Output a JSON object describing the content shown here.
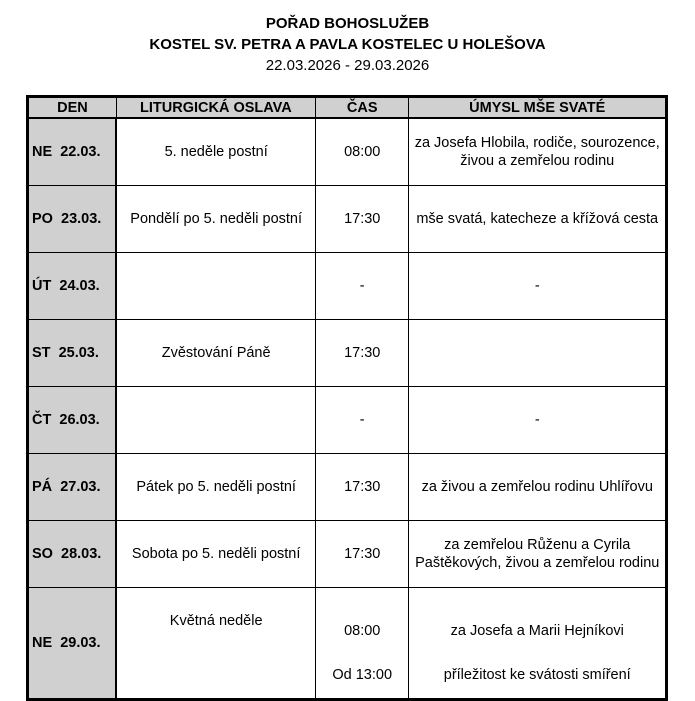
{
  "header": {
    "title": "POŘAD BOHOSLUŽEB",
    "church": "KOSTEL SV. PETRA A PAVLA KOSTELEC U HOLEŠOVA",
    "date_range": "22.03.2026 - 29.03.2026"
  },
  "table": {
    "columns": [
      "DEN",
      "LITURGICKÁ OSLAVA",
      "ČAS",
      "ÚMYSL MŠE SVATÉ"
    ],
    "rows": [
      {
        "day": "NE  22.03.",
        "celebration": "5. neděle postní",
        "time": "08:00",
        "intention": "za Josefa Hlobila, rodiče, sourozence, živou a zemřelou rodinu"
      },
      {
        "day": "PO  23.03.",
        "celebration": "Pondělí po 5. neděli postní",
        "time": "17:30",
        "intention": "mše svatá, katecheze a křížová cesta"
      },
      {
        "day": "ÚT  24.03.",
        "celebration": "",
        "time": "-",
        "intention": "-"
      },
      {
        "day": "ST  25.03.",
        "celebration": "Zvěstování Páně",
        "time": "17:30",
        "intention": ""
      },
      {
        "day": "ČT  26.03.",
        "celebration": "",
        "time": "-",
        "intention": "-"
      },
      {
        "day": "PÁ  27.03.",
        "celebration": "Pátek po 5. neděli postní",
        "time": "17:30",
        "intention": "za živou a zemřelou rodinu Uhlířovu"
      },
      {
        "day": "SO  28.03.",
        "celebration": "Sobota po 5. neděli postní",
        "time": "17:30",
        "intention": "za zemřelou Růženu a Cyrila Paštěkových, živou a zemřelou rodinu"
      }
    ],
    "last_row": {
      "day": "NE  29.03.",
      "celebration": "Květná neděle",
      "time1": "08:00",
      "intention1": "za Josefa a Marii Hejníkovi",
      "time2": "Od 13:00",
      "intention2": "příležitost ke svátosti smíření"
    }
  }
}
